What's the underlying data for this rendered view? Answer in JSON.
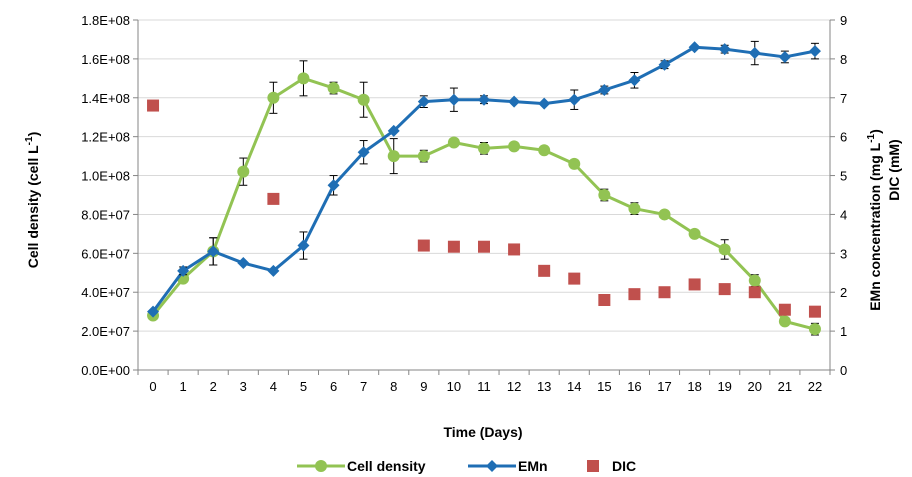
{
  "chart_data": {
    "type": "line",
    "x_label": "Time (Days)",
    "y_left_label": "Cell density (cell L",
    "y_left_label_sup": "-1",
    "y_left_label_end": ")",
    "y_right_label_1": "EMn concentration (mg L",
    "y_right_label_1_sup": "-1",
    "y_right_label_1_end": ")",
    "y_right_label_2": "DIC (mM)",
    "x_ticks": [
      "0",
      "1",
      "2",
      "3",
      "4",
      "5",
      "6",
      "7",
      "8",
      "9",
      "10",
      "11",
      "12",
      "13",
      "14",
      "15",
      "16",
      "17",
      "18",
      "19",
      "20",
      "21",
      "22"
    ],
    "y_left_ticks": [
      "0.0E+00",
      "2.0E+07",
      "4.0E+07",
      "6.0E+07",
      "8.0E+07",
      "1.0E+08",
      "1.2E+08",
      "1.4E+08",
      "1.6E+08",
      "1.8E+08"
    ],
    "y_right_ticks": [
      "0",
      "1",
      "2",
      "3",
      "4",
      "5",
      "6",
      "7",
      "8",
      "9"
    ],
    "y_left_range": [
      0,
      180000000
    ],
    "y_right_range": [
      0,
      9
    ],
    "x_range": [
      0,
      22
    ],
    "legend_position": "bottom",
    "series": [
      {
        "name": "Cell density",
        "axis": "left",
        "style": "line-circle",
        "color": "#92c353",
        "x": [
          0,
          1,
          2,
          3,
          4,
          5,
          6,
          7,
          8,
          9,
          10,
          11,
          12,
          13,
          14,
          15,
          16,
          17,
          18,
          19,
          20,
          21,
          22
        ],
        "values": [
          28000000,
          47000000,
          61000000,
          102000000,
          140000000,
          150000000,
          145000000,
          139000000,
          110000000,
          110000000,
          117000000,
          114000000,
          115000000,
          113000000,
          106000000,
          90000000,
          83000000,
          80000000,
          70000000,
          62000000,
          46000000,
          25000000,
          21000000
        ],
        "errors": [
          0,
          0,
          7000000,
          7000000,
          8000000,
          9000000,
          3000000,
          9000000,
          9000000,
          3000000,
          2000000,
          3000000,
          0,
          0,
          2000000,
          3000000,
          3000000,
          0,
          0,
          5000000,
          3000000,
          0,
          3000000
        ]
      },
      {
        "name": "EMn",
        "axis": "right",
        "style": "line-diamond",
        "color": "#1f6eb4",
        "x": [
          0,
          1,
          2,
          3,
          4,
          5,
          6,
          7,
          8,
          9,
          10,
          11,
          12,
          13,
          14,
          15,
          16,
          17,
          18,
          19,
          20,
          21,
          22
        ],
        "values": [
          1.5,
          2.55,
          3.05,
          2.75,
          2.55,
          3.2,
          4.75,
          5.6,
          6.15,
          6.9,
          6.95,
          6.95,
          6.9,
          6.85,
          6.95,
          7.2,
          7.45,
          7.85,
          8.3,
          8.25,
          8.15,
          8.05,
          8.2
        ],
        "errors": [
          0,
          0.1,
          0.35,
          0,
          0,
          0.35,
          0.25,
          0.3,
          0,
          0.15,
          0.3,
          0.1,
          0,
          0,
          0.25,
          0.1,
          0.2,
          0.1,
          0,
          0.1,
          0.3,
          0.15,
          0.2
        ]
      },
      {
        "name": "DIC",
        "axis": "right",
        "style": "square-marker",
        "color": "#c0504d",
        "x": [
          0,
          4,
          9,
          10,
          11,
          12,
          13,
          14,
          15,
          16,
          17,
          18,
          19,
          20,
          21,
          22
        ],
        "values": [
          6.8,
          4.4,
          3.2,
          3.17,
          3.17,
          3.1,
          2.55,
          2.35,
          1.8,
          1.95,
          2.0,
          2.2,
          2.08,
          2.0,
          1.55,
          1.5
        ]
      }
    ]
  }
}
